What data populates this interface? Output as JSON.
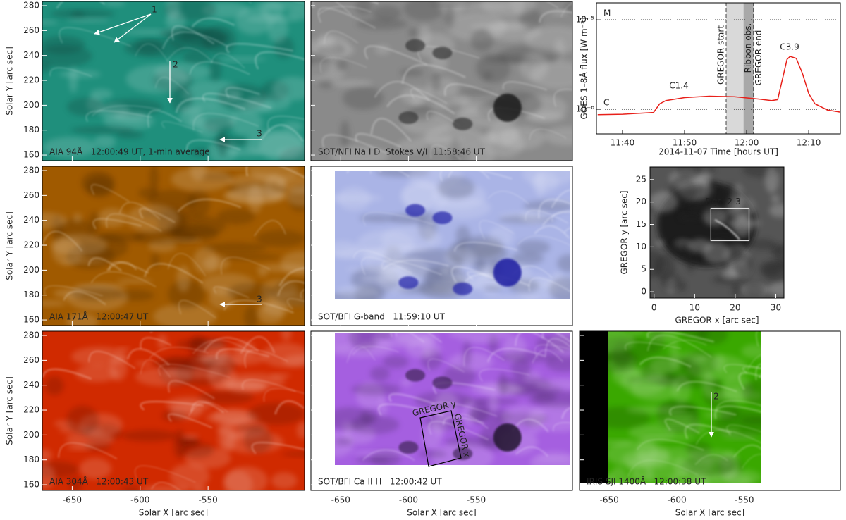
{
  "image_axes": {
    "xlabel": "Solar X [arc sec]",
    "ylabel": "Solar Y [arc sec]",
    "xlim": [
      -672,
      -479
    ],
    "ylim": [
      155.5,
      283.4
    ],
    "xticks": [
      -650,
      -600,
      -550
    ],
    "yticks": [
      160,
      180,
      200,
      220,
      240,
      260,
      280
    ]
  },
  "panels": [
    {
      "label": "AIA 94Å   12:00:49 UT, 1-min average",
      "color": "#1f8f7c",
      "annotations": [
        "1",
        "2",
        "3"
      ]
    },
    {
      "label": "SOT/NFI Na I D  Stokes V/I  11:58:46 UT",
      "color": "#8a8a8a"
    },
    {
      "label": "AIA 171Å   12:00:47 UT",
      "color": "#a05a00",
      "annotations": [
        "3"
      ]
    },
    {
      "label": "SOT/BFI G-band   11:59:10 UT",
      "color": "#aab4e6"
    },
    {
      "label": "AIA 304Å   12:00:43 UT",
      "color": "#d02a00"
    },
    {
      "label": "SOT/BFI Ca II H   12:00:42 UT",
      "color": "#a55fe0",
      "annotations": [
        "GREGOR y",
        "GREGOR x"
      ]
    },
    {
      "label": "IRIS SJI 1400Å   12:00:38 UT",
      "color": "#3aa800",
      "annotations": [
        "2"
      ]
    }
  ],
  "chart_data": {
    "type": "line",
    "xlabel": "2014-11-07 Time [hours UT]",
    "ylabel": "GOES 1–8Å flux [W m⁻²]",
    "color": "#e8201a",
    "log_y": true,
    "x": [
      696,
      700,
      705,
      706,
      707,
      710,
      714,
      718,
      722,
      724,
      725,
      726.5,
      727,
      728,
      729,
      730,
      731,
      733,
      735
    ],
    "values": [
      8.7e-07,
      8.8e-07,
      9.2e-07,
      1.15e-06,
      1.25e-06,
      1.35e-06,
      1.4e-06,
      1.38e-06,
      1.3e-06,
      1.25e-06,
      1.28e-06,
      3.6e-06,
      3.9e-06,
      3.7e-06,
      2.5e-06,
      1.5e-06,
      1.15e-06,
      9.8e-07,
      9.3e-07
    ],
    "xlim": [
      695.8,
      735.1
    ],
    "ylim": [
      5.3e-07,
      1.55e-05
    ],
    "xticks": [
      {
        "value": 700,
        "label": "11:40"
      },
      {
        "value": 710,
        "label": "11:50"
      },
      {
        "value": 720,
        "label": "12:00"
      },
      {
        "value": 730,
        "label": "12:10"
      }
    ],
    "yticks": [
      {
        "value": 1e-06,
        "label": "10⁻⁶"
      },
      {
        "value": 1e-05,
        "label": "10⁻⁵"
      }
    ],
    "hlines": [
      {
        "value": 1e-05,
        "label": "M"
      },
      {
        "value": 1e-06,
        "label": "C"
      }
    ],
    "shaded": [
      {
        "start": 716.7,
        "end": 719.5,
        "color": "#d9d9d9"
      },
      {
        "start": 719.5,
        "end": 721.1,
        "color": "#a8a8a8",
        "label": "Ribbon obs."
      }
    ],
    "markers": [
      {
        "x": 716.7,
        "label": "GREGOR start"
      },
      {
        "x": 721.1,
        "label": "GREGOR end"
      }
    ],
    "annotations": [
      "C1.4",
      "C3.9"
    ]
  },
  "gregor": {
    "xlabel": "GREGOR x [arc sec]",
    "ylabel": "GREGOR y [arc sec]",
    "xlim": [
      -1,
      32
    ],
    "ylim": [
      -1.4,
      27.8
    ],
    "xticks": [
      0,
      10,
      20,
      30
    ],
    "yticks": [
      0,
      5,
      10,
      15,
      20,
      25
    ],
    "box": {
      "label": "Figs. 2-3",
      "x0": 14,
      "x1": 23.4,
      "y0": 11.4,
      "y1": 18.6
    }
  }
}
